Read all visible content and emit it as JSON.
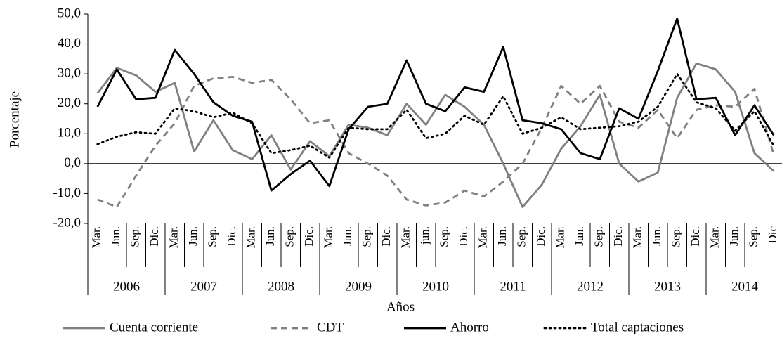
{
  "chart_data": {
    "type": "line",
    "y_label": "Porcentaje",
    "x_label": "Años",
    "categories": [
      "Mar.",
      "Jun.",
      "Sep.",
      "Dic.",
      "Mar.",
      "Jun.",
      "Sep.",
      "Dic.",
      "Mar.",
      "Jun.",
      "Sep.",
      "Dic.",
      "Mar.",
      "Jun.",
      "Sep.",
      "Dic.",
      "Mar.",
      "jun.",
      "Sep.",
      "Dic.",
      "Mar.",
      "Jun.",
      "Sep.",
      "Dic.",
      "Mar.",
      "Jun.",
      "Sep.",
      "Dic.",
      "Mar.",
      "Jun.",
      "Sep.",
      "Dic.",
      "Mar.",
      "Jun.",
      "Sep.",
      "Dic"
    ],
    "years": [
      "2006",
      "2007",
      "2008",
      "2009",
      "2010",
      "2011",
      "2012",
      "2013",
      "2014"
    ],
    "series": [
      {
        "name": "Cuenta corriente",
        "color": "#808080",
        "dash": "solid",
        "values": [
          23.5,
          32,
          29.5,
          24,
          27,
          4,
          14.5,
          4.5,
          1.5,
          9.5,
          -2,
          7.5,
          2.5,
          13,
          12,
          9.5,
          20,
          13,
          23,
          19,
          13,
          0,
          -14.5,
          -7,
          5,
          12.5,
          23,
          0,
          -6,
          -3,
          22,
          33.5,
          31.5,
          24,
          3.5,
          -2.5
        ]
      },
      {
        "name": "CDT",
        "color": "#808080",
        "dash": "dashed",
        "values": [
          -12,
          -14.5,
          -4,
          6,
          13.5,
          26,
          28.5,
          29,
          27,
          28,
          21.5,
          13.5,
          14.5,
          3.5,
          0,
          -4,
          -12,
          -14,
          -13,
          -9,
          -11,
          -6,
          0,
          12,
          26,
          20,
          26,
          14,
          12,
          18,
          8.5,
          18,
          19.5,
          19,
          25,
          3
        ]
      },
      {
        "name": "Ahorro",
        "color": "#000000",
        "dash": "solid",
        "values": [
          19,
          31.5,
          21.5,
          22,
          38,
          30,
          20.5,
          16,
          14,
          -9,
          -3.5,
          1,
          -7.5,
          11.5,
          19,
          20,
          34.5,
          20,
          17.5,
          25.5,
          24,
          39,
          14.5,
          13.5,
          11.5,
          3.5,
          1.5,
          18.5,
          15,
          31,
          48.5,
          21.5,
          22,
          9.5,
          19.5,
          9.5
        ]
      },
      {
        "name": "Total captaciones",
        "color": "#000000",
        "dash": "dotted",
        "values": [
          6.5,
          9,
          10.5,
          10,
          18.5,
          17.5,
          15.5,
          17,
          13.5,
          3.5,
          4.5,
          6,
          2,
          12,
          11.5,
          11.5,
          18,
          8.5,
          10,
          16,
          13,
          22.5,
          10,
          12,
          15.5,
          11.5,
          12,
          12.5,
          14,
          19,
          30,
          20.5,
          18.5,
          11,
          17.5,
          6
        ]
      }
    ],
    "ylim": [
      -20,
      50
    ],
    "yticks": [
      {
        "value": -20,
        "label": "-20,0"
      },
      {
        "value": -10,
        "label": "-10,0"
      },
      {
        "value": 0,
        "label": "0,0"
      },
      {
        "value": 10,
        "label": "10,0"
      },
      {
        "value": 20,
        "label": "20,0"
      },
      {
        "value": 30,
        "label": "30,0"
      },
      {
        "value": 40,
        "label": "40,0"
      },
      {
        "value": 50,
        "label": "50,0"
      }
    ],
    "grid": false,
    "legend": "bottom"
  }
}
